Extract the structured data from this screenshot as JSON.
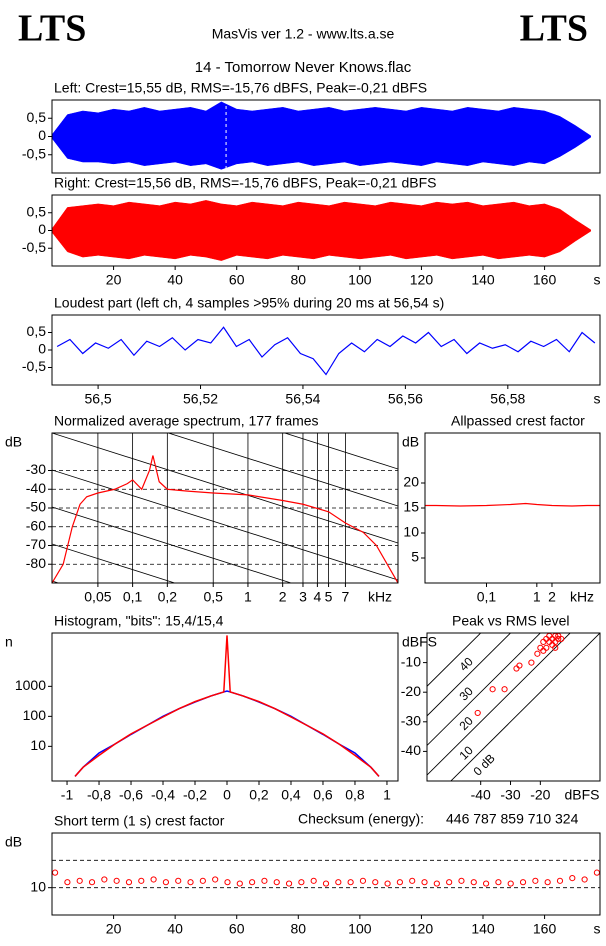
{
  "header": {
    "logo_left": "LTS",
    "logo_right": "LTS",
    "app": "MasVis ver 1.2 - www.lts.a.se",
    "file": "14 - Tomorrow Never Knows.flac"
  },
  "checksum": {
    "label": "Checksum (energy):",
    "value": "446 787 859 710 324"
  },
  "chart_data": [
    {
      "type": "waveform",
      "title": "Left: Crest=15,55 dB, RMS=-15,76 dBFS, Peak=-0,21 dBFS",
      "color": "#0000ff",
      "marker": 56.54,
      "xlim": [
        0,
        178
      ],
      "ylim": [
        -1,
        1
      ],
      "yticks": [
        {
          "value": 0.5,
          "label": "0,5"
        },
        0,
        {
          "value": -0.5,
          "label": "-0,5"
        }
      ],
      "x": [
        0,
        5,
        10,
        15,
        20,
        25,
        30,
        35,
        40,
        45,
        50,
        55,
        60,
        65,
        70,
        75,
        80,
        85,
        90,
        95,
        100,
        105,
        110,
        115,
        120,
        125,
        130,
        135,
        140,
        145,
        150,
        155,
        160,
        165,
        170,
        175
      ],
      "upper": [
        0.05,
        0.6,
        0.7,
        0.65,
        0.75,
        0.7,
        0.8,
        0.7,
        0.75,
        0.8,
        0.7,
        0.95,
        0.75,
        0.7,
        0.75,
        0.8,
        0.7,
        0.75,
        0.8,
        0.7,
        0.75,
        0.8,
        0.75,
        0.7,
        0.8,
        0.75,
        0.7,
        0.8,
        0.75,
        0.7,
        0.8,
        0.75,
        0.7,
        0.55,
        0.3,
        0.02
      ],
      "lower": [
        -0.05,
        -0.6,
        -0.7,
        -0.7,
        -0.75,
        -0.7,
        -0.8,
        -0.75,
        -0.7,
        -0.8,
        -0.75,
        -0.9,
        -0.75,
        -0.7,
        -0.8,
        -0.75,
        -0.7,
        -0.8,
        -0.75,
        -0.7,
        -0.8,
        -0.75,
        -0.7,
        -0.75,
        -0.8,
        -0.7,
        -0.75,
        -0.8,
        -0.7,
        -0.75,
        -0.8,
        -0.7,
        -0.75,
        -0.55,
        -0.3,
        -0.02
      ]
    },
    {
      "type": "waveform",
      "title": "Right: Crest=15,56 dB, RMS=-15,76 dBFS, Peak=-0,21 dBFS",
      "color": "#ff0000",
      "xlim": [
        0,
        178
      ],
      "ylim": [
        -1,
        1
      ],
      "yticks": [
        {
          "value": 0.5,
          "label": "0,5"
        },
        0,
        {
          "value": -0.5,
          "label": "-0,5"
        }
      ],
      "xticks": [
        20,
        40,
        60,
        80,
        100,
        120,
        140,
        160
      ],
      "x_unit": "s",
      "x": [
        0,
        5,
        10,
        15,
        20,
        25,
        30,
        35,
        40,
        45,
        50,
        55,
        60,
        65,
        70,
        75,
        80,
        85,
        90,
        95,
        100,
        105,
        110,
        115,
        120,
        125,
        130,
        135,
        140,
        145,
        150,
        155,
        160,
        165,
        170,
        175
      ],
      "upper": [
        0.05,
        0.65,
        0.7,
        0.75,
        0.7,
        0.8,
        0.75,
        0.7,
        0.8,
        0.75,
        0.85,
        0.75,
        0.7,
        0.8,
        0.75,
        0.7,
        0.8,
        0.75,
        0.7,
        0.8,
        0.75,
        0.7,
        0.8,
        0.75,
        0.7,
        0.8,
        0.75,
        0.8,
        0.7,
        0.75,
        0.8,
        0.7,
        0.75,
        0.6,
        0.3,
        0.02
      ],
      "lower": [
        -0.05,
        -0.6,
        -0.75,
        -0.7,
        -0.75,
        -0.8,
        -0.7,
        -0.75,
        -0.8,
        -0.7,
        -0.75,
        -0.85,
        -0.7,
        -0.75,
        -0.8,
        -0.7,
        -0.75,
        -0.8,
        -0.7,
        -0.75,
        -0.8,
        -0.75,
        -0.7,
        -0.8,
        -0.75,
        -0.7,
        -0.8,
        -0.75,
        -0.7,
        -0.8,
        -0.75,
        -0.7,
        -0.75,
        -0.6,
        -0.3,
        -0.02
      ]
    },
    {
      "type": "line",
      "title": "Loudest part (left  ch, 4 samples >95% during 20 ms at 56,54 s)",
      "color": "#0000ff",
      "xlim": [
        56.491,
        56.598
      ],
      "ylim": [
        -1,
        1
      ],
      "yticks": [
        {
          "value": 0.5,
          "label": "0,5"
        },
        0,
        {
          "value": -0.5,
          "label": "-0,5"
        }
      ],
      "xticks": [
        {
          "value": 56.5,
          "label": "56,5"
        },
        {
          "value": 56.52,
          "label": "56,52"
        },
        {
          "value": 56.54,
          "label": "56,54"
        },
        {
          "value": 56.56,
          "label": "56,56"
        },
        {
          "value": 56.58,
          "label": "56,58"
        }
      ],
      "x_unit": "s",
      "x": [
        56.492,
        56.4945,
        56.497,
        56.4995,
        56.502,
        56.5045,
        56.507,
        56.5095,
        56.512,
        56.5145,
        56.517,
        56.5195,
        56.522,
        56.5245,
        56.527,
        56.5295,
        56.532,
        56.5345,
        56.537,
        56.5395,
        56.542,
        56.5445,
        56.547,
        56.5495,
        56.552,
        56.5545,
        56.557,
        56.5595,
        56.562,
        56.5645,
        56.567,
        56.5695,
        56.572,
        56.5745,
        56.577,
        56.5795,
        56.582,
        56.5845,
        56.587,
        56.5895,
        56.592,
        56.5945,
        56.597
      ],
      "values": [
        0.1,
        0.3,
        -0.1,
        0.2,
        0.05,
        0.3,
        -0.15,
        0.25,
        0.1,
        0.35,
        0.0,
        0.3,
        0.2,
        0.65,
        0.1,
        0.3,
        -0.2,
        0.15,
        0.35,
        -0.1,
        -0.25,
        -0.7,
        -0.1,
        0.2,
        -0.05,
        0.3,
        0.1,
        0.4,
        0.2,
        0.5,
        0.1,
        0.3,
        -0.1,
        0.2,
        0.05,
        0.15,
        -0.05,
        0.25,
        0.1,
        0.3,
        -0.05,
        0.5,
        0.2
      ]
    },
    {
      "type": "line",
      "title": "Normalized average spectrum, 177 frames",
      "color": "#ff0000",
      "xlog": true,
      "ygrid": "dashed",
      "xgrid": "solid",
      "slopes": true,
      "xlim": [
        0.02,
        20
      ],
      "ylim": [
        -90,
        -10
      ],
      "y_unit": "dB",
      "x_unit": "kHz",
      "yticks": [
        -30,
        -40,
        -50,
        -60,
        -70,
        -80
      ],
      "xticks": [
        {
          "value": 0.05,
          "label": "0,05"
        },
        {
          "value": 0.1,
          "label": "0,1"
        },
        {
          "value": 0.2,
          "label": "0,2"
        },
        {
          "value": 0.5,
          "label": "0,5"
        },
        1,
        2,
        3,
        4,
        5,
        7
      ],
      "x": [
        0.02,
        0.025,
        0.03,
        0.035,
        0.04,
        0.05,
        0.07,
        0.09,
        0.1,
        0.12,
        0.14,
        0.15,
        0.17,
        0.2,
        0.3,
        0.5,
        1,
        2,
        3,
        5,
        7,
        10,
        13,
        20
      ],
      "values": [
        -90,
        -80,
        -60,
        -48,
        -44,
        -42,
        -40,
        -37,
        -35,
        -40,
        -30,
        -22,
        -36,
        -40,
        -41,
        -42,
        -43,
        -46,
        -48,
        -52,
        -58,
        -63,
        -70,
        -90
      ]
    },
    {
      "type": "line",
      "title": "Allpassed crest factor",
      "color": "#ff0000",
      "xlog": true,
      "xlim": [
        0.006,
        18
      ],
      "ylim": [
        0,
        30
      ],
      "y_unit": "dB",
      "x_unit": "kHz",
      "yticks": [
        20,
        15,
        10,
        5
      ],
      "xticks": [
        {
          "value": 0.1,
          "label": "0,1"
        },
        1,
        2
      ],
      "x": [
        0.006,
        0.01,
        0.03,
        0.1,
        0.3,
        0.6,
        1,
        2,
        5,
        10,
        18
      ],
      "values": [
        15.5,
        15.5,
        15.4,
        15.5,
        15.7,
        15.9,
        15.7,
        15.5,
        15.4,
        15.5,
        15.5
      ]
    },
    {
      "type": "histogram",
      "title": "Histogram, \"bits\": 15,4/15,4",
      "ylog": true,
      "xlim": [
        -1.094,
        1.069
      ],
      "ylim": [
        0.7,
        60000
      ],
      "y_unit": "n",
      "yticks": [
        1000,
        100,
        10
      ],
      "xticks": [
        -1,
        {
          "value": -0.8,
          "label": "-0,8"
        },
        {
          "value": -0.6,
          "label": "-0,6"
        },
        {
          "value": -0.4,
          "label": "-0,4"
        },
        {
          "value": -0.2,
          "label": "-0,2"
        },
        0,
        {
          "value": 0.2,
          "label": "0,2"
        },
        {
          "value": 0.4,
          "label": "0,4"
        },
        {
          "value": 0.6,
          "label": "0,6"
        },
        {
          "value": 0.8,
          "label": "0,8"
        },
        1
      ],
      "x": [
        -0.95,
        -0.9,
        -0.8,
        -0.7,
        -0.6,
        -0.5,
        -0.4,
        -0.3,
        -0.2,
        -0.1,
        -0.02,
        0,
        0.02,
        0.1,
        0.2,
        0.3,
        0.4,
        0.5,
        0.6,
        0.7,
        0.8,
        0.9,
        0.95
      ],
      "series": [
        {
          "color": "#0000ff",
          "values": [
            1,
            2,
            6,
            12,
            25,
            50,
            100,
            180,
            300,
            480,
            650,
            700,
            650,
            480,
            300,
            180,
            100,
            50,
            25,
            12,
            6,
            2,
            1
          ]
        },
        {
          "color": "#ff0000",
          "values": [
            1,
            2,
            5,
            12,
            26,
            50,
            95,
            180,
            310,
            480,
            650,
            50000,
            650,
            480,
            310,
            180,
            95,
            50,
            26,
            12,
            5,
            2,
            1
          ]
        }
      ]
    },
    {
      "type": "scatter",
      "title": "Peak vs RMS level",
      "color": "#ff0000",
      "xlim": [
        -58,
        0
      ],
      "ylim": [
        -50,
        0
      ],
      "y_unit": "dBFS",
      "x_unit": "dBFS",
      "yticks": [
        -10,
        -20,
        -30,
        -40
      ],
      "xticks": [
        -40,
        -30,
        -20
      ],
      "crest_lines": [
        {
          "value": 40,
          "label": "40"
        },
        {
          "value": 30,
          "label": "30"
        },
        {
          "value": 20,
          "label": "20"
        },
        {
          "value": 10,
          "label": "10"
        },
        {
          "value": 0,
          "label": "0 dB"
        }
      ],
      "x": [
        -41,
        -36,
        -32,
        -28,
        -27,
        -23,
        -21,
        -20,
        -19,
        -18,
        -17,
        -16,
        -16,
        -15,
        -15,
        -14,
        -14,
        -13,
        -17,
        -18,
        -19,
        -15
      ],
      "values": [
        -27,
        -19,
        -19,
        -12,
        -11,
        -10,
        -7,
        -5,
        -3,
        -5,
        -3,
        -2,
        -4,
        -1,
        -3,
        -2,
        -1,
        -2,
        -1,
        -2,
        -6,
        -5
      ]
    },
    {
      "type": "scatter",
      "title": "Short term (1 s) crest factor",
      "color": "#ff0000",
      "ref_lines": [
        10,
        20
      ],
      "xlim": [
        0,
        178
      ],
      "ylim": [
        0,
        30
      ],
      "y_unit": "dB",
      "x_unit": "s",
      "yticks": [
        10
      ],
      "xticks": [
        20,
        40,
        60,
        80,
        100,
        120,
        140,
        160
      ],
      "x": [
        1,
        5,
        9,
        13,
        17,
        21,
        25,
        29,
        33,
        37,
        41,
        45,
        49,
        53,
        57,
        61,
        65,
        69,
        73,
        77,
        81,
        85,
        89,
        93,
        97,
        101,
        105,
        109,
        113,
        117,
        121,
        125,
        129,
        133,
        137,
        141,
        145,
        149,
        153,
        157,
        161,
        165,
        169,
        173,
        177
      ],
      "values": [
        15.5,
        12,
        12.5,
        12,
        13,
        12.5,
        12,
        12.5,
        13,
        12,
        12.5,
        12,
        12.5,
        13,
        12,
        11.5,
        12,
        12.5,
        12,
        11.5,
        12,
        12.5,
        11.5,
        12,
        12,
        12.5,
        12,
        11.5,
        12,
        12.5,
        12,
        11.5,
        12,
        12.5,
        12,
        11.5,
        12,
        11.5,
        12,
        12.5,
        12,
        12.5,
        13.5,
        13,
        15.5
      ]
    }
  ]
}
